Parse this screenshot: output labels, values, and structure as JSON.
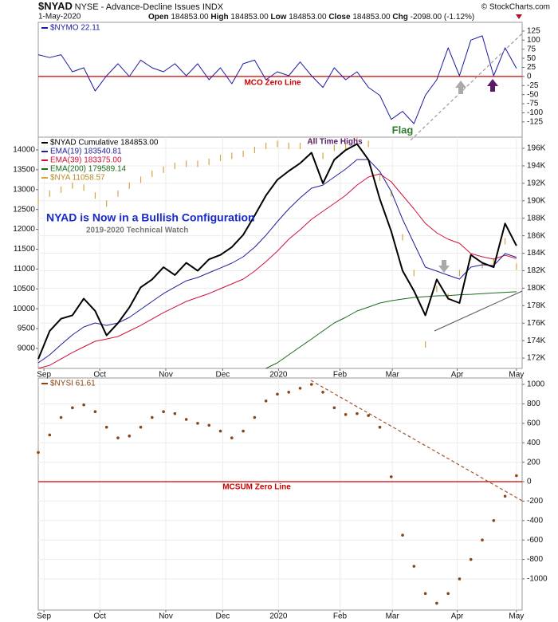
{
  "header": {
    "symbol": "$NYAD",
    "description": "NYSE - Advance-Decline Issues INDX",
    "date": "1-May-2020",
    "quote": [
      {
        "label": "Open",
        "value": "184853.00"
      },
      {
        "label": "High",
        "value": "184853.00"
      },
      {
        "label": "Low",
        "value": "184853.00"
      },
      {
        "label": "Close",
        "value": "184853.00"
      },
      {
        "label": "Chg",
        "value": "-2098.00 (-1.12%)"
      }
    ],
    "credit": "© StockCharts.com"
  },
  "chart_data": [
    {
      "type": "line",
      "xlim": [
        0,
        42.5
      ],
      "ylim": [
        -167,
        149
      ],
      "yticks": [
        -125,
        -100,
        -75,
        -50,
        -25,
        0,
        25,
        50,
        75,
        100,
        125
      ],
      "grid": false,
      "reference_line": {
        "value": 0,
        "color": "#cc0000"
      },
      "annotations": [
        "MCO Zero Line",
        "Flag"
      ],
      "series": [
        {
          "name": "$NYMO 22.11",
          "color": "#1a1aa0",
          "style": "line",
          "values": [
            60,
            52,
            60,
            13,
            24,
            -40,
            2,
            35,
            0,
            45,
            24,
            13,
            35,
            2,
            35,
            -9,
            24,
            -20,
            35,
            45,
            -9,
            13,
            2,
            40,
            2,
            -30,
            24,
            -9,
            13,
            -30,
            -52,
            -118,
            -96,
            -130,
            -52,
            -9,
            79,
            2,
            100,
            112,
            2,
            79,
            22.11
          ]
        }
      ]
    },
    {
      "type": "line",
      "xlim": [
        0,
        42.5
      ],
      "ylim": [
        170.82,
        197.28
      ],
      "yticks": [
        {
          "value": 172,
          "label": "172K"
        },
        {
          "value": 174,
          "label": "174K"
        },
        {
          "value": 176,
          "label": "176K"
        },
        {
          "value": 178,
          "label": "178K"
        },
        {
          "value": 180,
          "label": "180K"
        },
        {
          "value": 182,
          "label": "182K"
        },
        {
          "value": 184,
          "label": "184K"
        },
        {
          "value": 186,
          "label": "186K"
        },
        {
          "value": 188,
          "label": "188K"
        },
        {
          "value": 190,
          "label": "190K"
        },
        {
          "value": 192,
          "label": "192K"
        },
        {
          "value": 194,
          "label": "194K"
        },
        {
          "value": 196,
          "label": "196K"
        }
      ],
      "y2lim": [
        8498,
        14321
      ],
      "y2ticks": [
        9000,
        9500,
        10000,
        10500,
        11000,
        11500,
        12000,
        12500,
        13000,
        13500,
        14000
      ],
      "xticks": [
        {
          "value": 0.5,
          "label": "Sep"
        },
        {
          "value": 5.4,
          "label": "Oct"
        },
        {
          "value": 11.2,
          "label": "Nov"
        },
        {
          "value": 16.2,
          "label": "Dec"
        },
        {
          "value": 21.1,
          "label": "2020"
        },
        {
          "value": 26.5,
          "label": "Feb"
        },
        {
          "value": 31.1,
          "label": "Mar"
        },
        {
          "value": 36.8,
          "label": "Apr"
        },
        {
          "value": 42,
          "label": "May"
        }
      ],
      "grid": true,
      "annotations": [
        "All Time Highs",
        "NYAD is Now in a Bullish Configuration",
        "2019-2020 Technical Watch"
      ],
      "series": [
        {
          "name": "$NYAD Cumulative 184853.00",
          "color": "#000000",
          "style": "line",
          "width": 2,
          "values": [
            171.9,
            175.1,
            176.5,
            176.9,
            178.8,
            177.4,
            174.6,
            176.0,
            177.8,
            180.1,
            181.0,
            182.4,
            181.5,
            182.9,
            182.0,
            183.3,
            183.8,
            184.7,
            186.1,
            188.3,
            190.6,
            192.4,
            193.4,
            194.3,
            195.5,
            192.0,
            194.7,
            195.8,
            196.5,
            194.7,
            190.2,
            186.5,
            182.0,
            179.7,
            176.9,
            181.0,
            178.8,
            178.3,
            183.8,
            182.9,
            182.4,
            187.4,
            184.85
          ]
        },
        {
          "name": "EMA(19) 183540.81",
          "color": "#1f1f9a",
          "style": "line",
          "width": 1,
          "values": [
            171.46,
            172.37,
            173.55,
            174.65,
            175.56,
            176.02,
            175.74,
            176.02,
            176.66,
            177.57,
            178.48,
            179.39,
            180.12,
            180.85,
            181.22,
            181.77,
            182.31,
            182.86,
            183.59,
            184.69,
            186.05,
            187.61,
            189.07,
            190.34,
            191.44,
            191.8,
            192.72,
            193.63,
            194.72,
            194.72,
            193.35,
            191.07,
            187.88,
            185.14,
            182.41,
            181.95,
            181.49,
            181.04,
            182.41,
            182.68,
            182.59,
            183.96,
            183.54
          ]
        },
        {
          "name": "EMA(39) 183375.00",
          "color": "#d0103a",
          "style": "line",
          "width": 1,
          "values": [
            170.82,
            171.18,
            171.91,
            172.64,
            173.28,
            173.92,
            174.19,
            174.47,
            175.11,
            175.74,
            176.47,
            177.2,
            177.84,
            178.48,
            178.94,
            179.39,
            179.94,
            180.49,
            181.04,
            181.95,
            183.04,
            184.23,
            185.6,
            186.69,
            187.88,
            188.79,
            189.7,
            190.62,
            191.8,
            192.72,
            193.08,
            192.17,
            190.62,
            189.07,
            187.42,
            186.33,
            185.6,
            185.14,
            183.96,
            183.59,
            183.32,
            183.77,
            183.38
          ]
        },
        {
          "name": "EMA(200) 179589.14",
          "color": "#1a6b1a",
          "style": "line",
          "width": 1,
          "values": [
            null,
            null,
            null,
            null,
            null,
            null,
            null,
            null,
            null,
            null,
            null,
            null,
            null,
            null,
            null,
            null,
            null,
            null,
            null,
            null,
            170.82,
            171.46,
            172.37,
            173.28,
            174.19,
            175.11,
            176.02,
            176.66,
            177.39,
            177.84,
            178.3,
            178.57,
            178.76,
            178.94,
            179.03,
            179.12,
            179.15,
            179.25,
            179.3,
            179.38,
            179.45,
            179.52,
            179.59
          ]
        },
        {
          "name": "$NYA 11058.57",
          "color": "#d4a640",
          "style": "bars",
          "axis": "y2",
          "values": [
            12700,
            12900,
            13000,
            13100,
            13050,
            12850,
            12650,
            12900,
            13100,
            13250,
            13400,
            13500,
            13600,
            13650,
            13650,
            13700,
            13800,
            13850,
            13900,
            14000,
            14100,
            14150,
            14100,
            14100,
            14200,
            13850,
            14050,
            14100,
            14250,
            14150,
            13300,
            12900,
            11800,
            10900,
            9100,
            10500,
            10300,
            10900,
            11300,
            11100,
            11200,
            11700,
            11058.57
          ]
        }
      ]
    },
    {
      "type": "line",
      "xlim": [
        0,
        42.5
      ],
      "ylim": [
        -1320,
        1066
      ],
      "yticks": [
        -1000,
        -800,
        -600,
        -400,
        -200,
        0,
        200,
        400,
        600,
        800,
        1000
      ],
      "xticks": [
        {
          "value": 0.5,
          "label": "Sep"
        },
        {
          "value": 5.4,
          "label": "Oct"
        },
        {
          "value": 11.2,
          "label": "Nov"
        },
        {
          "value": 16.2,
          "label": "Dec"
        },
        {
          "value": 21.1,
          "label": "2020"
        },
        {
          "value": 26.5,
          "label": "Feb"
        },
        {
          "value": 31.1,
          "label": "Mar"
        },
        {
          "value": 36.8,
          "label": "Apr"
        },
        {
          "value": 42,
          "label": "May"
        }
      ],
      "grid": true,
      "reference_line": {
        "value": 0,
        "color": "#cc0000"
      },
      "annotations": [
        "MCSUM Zero Line"
      ],
      "series": [
        {
          "name": "$NYSI 61.61",
          "color": "#8b4513",
          "style": "dots",
          "values": [
            300,
            480,
            660,
            760,
            790,
            720,
            560,
            450,
            470,
            560,
            660,
            720,
            700,
            640,
            600,
            580,
            520,
            450,
            520,
            660,
            830,
            900,
            920,
            960,
            1000,
            920,
            760,
            690,
            700,
            680,
            560,
            50,
            -550,
            -870,
            -1150,
            -1250,
            -1150,
            -1000,
            -800,
            -600,
            -400,
            -150,
            61.61
          ]
        }
      ]
    }
  ]
}
